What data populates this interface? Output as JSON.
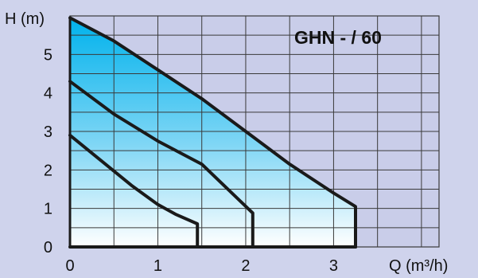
{
  "chart_data": {
    "type": "line",
    "title": "GHN - / 60",
    "xlabel": "Q (m³/h)",
    "ylabel": "H (m)",
    "xlim": [
      0,
      4.2
    ],
    "ylim": [
      0,
      6
    ],
    "x_ticks": [
      "0",
      "1",
      "2",
      "3"
    ],
    "y_ticks": [
      "0",
      "1",
      "2",
      "3",
      "4",
      "5"
    ],
    "grid": true,
    "series": [
      {
        "points": [
          [
            0,
            2.9
          ],
          [
            0.35,
            2.25
          ],
          [
            0.7,
            1.6
          ],
          [
            1.0,
            1.1
          ],
          [
            1.2,
            0.85
          ],
          [
            1.45,
            0.6
          ],
          [
            1.45,
            0
          ]
        ]
      },
      {
        "points": [
          [
            0,
            4.3
          ],
          [
            0.5,
            3.45
          ],
          [
            1.0,
            2.75
          ],
          [
            1.5,
            2.15
          ],
          [
            2.08,
            0.88
          ],
          [
            2.08,
            0
          ]
        ]
      },
      {
        "points": [
          [
            0,
            5.95
          ],
          [
            0.5,
            5.35
          ],
          [
            1.0,
            4.6
          ],
          [
            1.5,
            3.85
          ],
          [
            2.0,
            3.0
          ],
          [
            2.5,
            2.15
          ],
          [
            3.0,
            1.4
          ],
          [
            3.25,
            1.05
          ],
          [
            3.25,
            0
          ]
        ]
      }
    ],
    "colors": {
      "background": "#cfd3ec",
      "plot_area": "#c9cde9",
      "grid": "#3a3a3a",
      "curve": "#1a1a1a",
      "fill_top": "#00b2ec",
      "fill_bottom": "#ffffff"
    }
  }
}
